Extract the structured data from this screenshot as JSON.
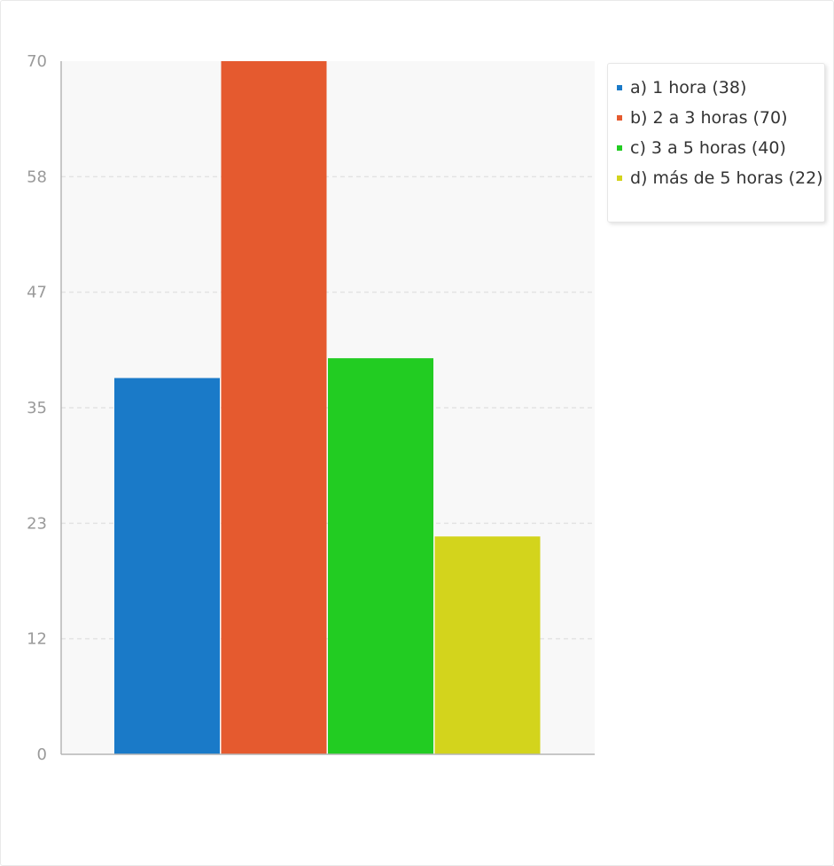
{
  "chart_data": {
    "type": "bar",
    "title": "",
    "xlabel": "",
    "ylabel": "",
    "ylim": [
      0,
      70
    ],
    "yticks": [
      "0",
      "12",
      "23",
      "35",
      "47",
      "58",
      "70"
    ],
    "grid": true,
    "legend_position": "right",
    "series": [
      {
        "name": "a) 1 hora",
        "value": 38,
        "color": "#1a7ac8",
        "legend_label": "a) 1 hora (38)"
      },
      {
        "name": "b) 2 a 3 horas",
        "value": 70,
        "color": "#e55a2f",
        "legend_label": "b) 2 a 3 horas (70)"
      },
      {
        "name": "c) 3 a 5 horas",
        "value": 40,
        "color": "#22cc22",
        "legend_label": "c) 3 a 5 horas (40)"
      },
      {
        "name": "d) más de 5 horas",
        "value": 22,
        "color": "#d3d41c",
        "legend_label": "d) más de 5 horas (22)"
      }
    ]
  }
}
